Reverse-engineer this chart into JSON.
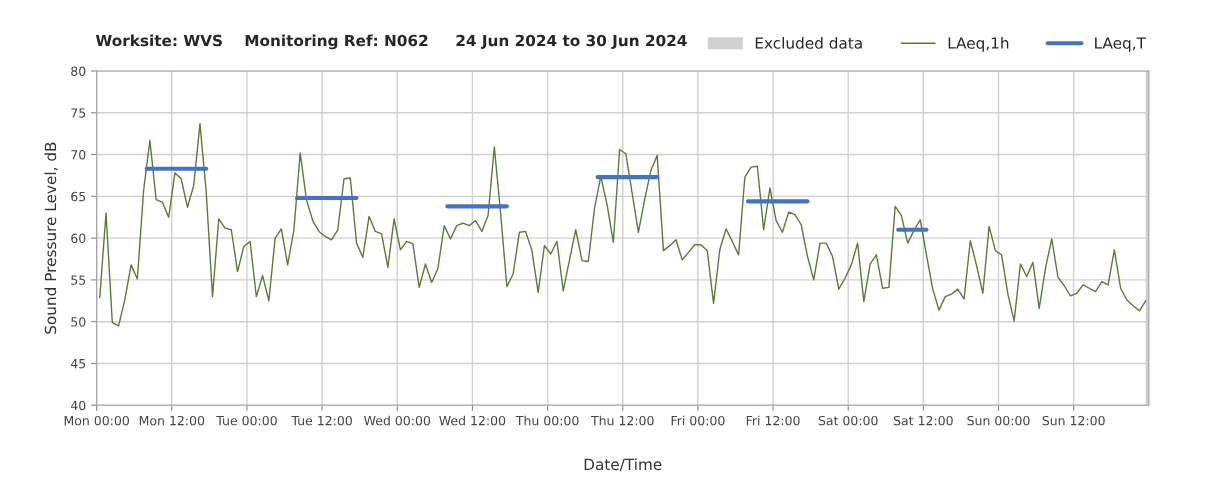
{
  "chart_data": {
    "type": "line",
    "title": "Worksite: WVS    Monitoring Ref: N062     24 Jun 2024 to 30 Jun 2024",
    "xlabel": "Date/Time",
    "ylabel": "Sound Pressure Level, dB",
    "xlim": [
      "2024-06-24T00:00",
      "2024-07-01T00:00"
    ],
    "ylim": [
      40,
      80
    ],
    "xticks": [
      {
        "value": "2024-06-24T00:00",
        "label": "Mon 00:00"
      },
      {
        "value": "2024-06-24T12:00",
        "label": "Mon 12:00"
      },
      {
        "value": "2024-06-25T00:00",
        "label": "Tue 00:00"
      },
      {
        "value": "2024-06-25T12:00",
        "label": "Tue 12:00"
      },
      {
        "value": "2024-06-26T00:00",
        "label": "Wed 00:00"
      },
      {
        "value": "2024-06-26T12:00",
        "label": "Wed 12:00"
      },
      {
        "value": "2024-06-27T00:00",
        "label": "Thu 00:00"
      },
      {
        "value": "2024-06-27T12:00",
        "label": "Thu 12:00"
      },
      {
        "value": "2024-06-28T00:00",
        "label": "Fri 00:00"
      },
      {
        "value": "2024-06-28T12:00",
        "label": "Fri 12:00"
      },
      {
        "value": "2024-06-29T00:00",
        "label": "Sat 00:00"
      },
      {
        "value": "2024-06-29T12:00",
        "label": "Sat 12:00"
      },
      {
        "value": "2024-06-30T00:00",
        "label": "Sun 00:00"
      },
      {
        "value": "2024-06-30T12:00",
        "label": "Sun 12:00"
      }
    ],
    "yticks": [
      40,
      45,
      50,
      55,
      60,
      65,
      70,
      75,
      80
    ],
    "grid": true,
    "legend": "top right",
    "bands": [
      {
        "axis": "x",
        "from": "2024-06-30T23:30",
        "to": "2024-07-01T00:00",
        "label": "Excluded data",
        "color": "#d0d0d0"
      }
    ],
    "series": [
      {
        "name": "LAeq,1h",
        "color": "#5a7a3a",
        "x": [
          "2024-06-24T00:30",
          "2024-06-24T01:30",
          "2024-06-24T02:30",
          "2024-06-24T03:30",
          "2024-06-24T04:30",
          "2024-06-24T05:30",
          "2024-06-24T06:30",
          "2024-06-24T07:30",
          "2024-06-24T08:30",
          "2024-06-24T09:30",
          "2024-06-24T10:30",
          "2024-06-24T11:30",
          "2024-06-24T12:30",
          "2024-06-24T13:30",
          "2024-06-24T14:30",
          "2024-06-24T15:30",
          "2024-06-24T16:30",
          "2024-06-24T17:30",
          "2024-06-24T18:30",
          "2024-06-24T19:30",
          "2024-06-24T20:30",
          "2024-06-24T21:30",
          "2024-06-24T22:30",
          "2024-06-24T23:30",
          "2024-06-25T00:30",
          "2024-06-25T01:30",
          "2024-06-25T02:30",
          "2024-06-25T03:30",
          "2024-06-25T04:30",
          "2024-06-25T05:30",
          "2024-06-25T06:30",
          "2024-06-25T07:30",
          "2024-06-25T08:30",
          "2024-06-25T09:30",
          "2024-06-25T10:30",
          "2024-06-25T11:30",
          "2024-06-25T12:30",
          "2024-06-25T13:30",
          "2024-06-25T14:30",
          "2024-06-25T15:30",
          "2024-06-25T16:30",
          "2024-06-25T17:30",
          "2024-06-25T18:30",
          "2024-06-25T19:30",
          "2024-06-25T20:30",
          "2024-06-25T21:30",
          "2024-06-25T22:30",
          "2024-06-25T23:30",
          "2024-06-26T00:30",
          "2024-06-26T01:30",
          "2024-06-26T02:30",
          "2024-06-26T03:30",
          "2024-06-26T04:30",
          "2024-06-26T05:30",
          "2024-06-26T06:30",
          "2024-06-26T07:30",
          "2024-06-26T08:30",
          "2024-06-26T09:30",
          "2024-06-26T10:30",
          "2024-06-26T11:30",
          "2024-06-26T12:30",
          "2024-06-26T13:30",
          "2024-06-26T14:30",
          "2024-06-26T15:30",
          "2024-06-26T16:30",
          "2024-06-26T17:30",
          "2024-06-26T18:30",
          "2024-06-26T19:30",
          "2024-06-26T20:30",
          "2024-06-26T21:30",
          "2024-06-26T22:30",
          "2024-06-26T23:30",
          "2024-06-27T00:30",
          "2024-06-27T01:30",
          "2024-06-27T02:30",
          "2024-06-27T03:30",
          "2024-06-27T04:30",
          "2024-06-27T05:30",
          "2024-06-27T06:30",
          "2024-06-27T07:30",
          "2024-06-27T08:30",
          "2024-06-27T09:30",
          "2024-06-27T10:30",
          "2024-06-27T11:30",
          "2024-06-27T12:30",
          "2024-06-27T13:30",
          "2024-06-27T14:30",
          "2024-06-27T15:30",
          "2024-06-27T16:30",
          "2024-06-27T17:30",
          "2024-06-27T18:30",
          "2024-06-27T19:30",
          "2024-06-27T20:30",
          "2024-06-27T21:30",
          "2024-06-27T22:30",
          "2024-06-27T23:30",
          "2024-06-28T00:30",
          "2024-06-28T01:30",
          "2024-06-28T02:30",
          "2024-06-28T03:30",
          "2024-06-28T04:30",
          "2024-06-28T05:30",
          "2024-06-28T06:30",
          "2024-06-28T07:30",
          "2024-06-28T08:30",
          "2024-06-28T09:30",
          "2024-06-28T10:30",
          "2024-06-28T11:30",
          "2024-06-28T12:30",
          "2024-06-28T13:30",
          "2024-06-28T14:30",
          "2024-06-28T15:30",
          "2024-06-28T16:30",
          "2024-06-28T17:30",
          "2024-06-28T18:30",
          "2024-06-28T19:30",
          "2024-06-28T20:30",
          "2024-06-28T21:30",
          "2024-06-28T22:30",
          "2024-06-28T23:30",
          "2024-06-29T00:30",
          "2024-06-29T01:30",
          "2024-06-29T02:30",
          "2024-06-29T03:30",
          "2024-06-29T04:30",
          "2024-06-29T05:30",
          "2024-06-29T06:30",
          "2024-06-29T07:30",
          "2024-06-29T08:30",
          "2024-06-29T09:30",
          "2024-06-29T10:30",
          "2024-06-29T11:30",
          "2024-06-29T12:30",
          "2024-06-29T13:30",
          "2024-06-29T14:30",
          "2024-06-29T15:30",
          "2024-06-29T16:30",
          "2024-06-29T17:30",
          "2024-06-29T18:30",
          "2024-06-29T19:30",
          "2024-06-29T20:30",
          "2024-06-29T21:30",
          "2024-06-29T22:30",
          "2024-06-29T23:30",
          "2024-06-30T00:30",
          "2024-06-30T01:30",
          "2024-06-30T02:30",
          "2024-06-30T03:30",
          "2024-06-30T04:30",
          "2024-06-30T05:30",
          "2024-06-30T06:30",
          "2024-06-30T07:30",
          "2024-06-30T08:30",
          "2024-06-30T09:30",
          "2024-06-30T10:30",
          "2024-06-30T11:30",
          "2024-06-30T12:30",
          "2024-06-30T13:30",
          "2024-06-30T14:30",
          "2024-06-30T15:30",
          "2024-06-30T16:30",
          "2024-06-30T17:30",
          "2024-06-30T18:30",
          "2024-06-30T19:30",
          "2024-06-30T20:30",
          "2024-06-30T21:30",
          "2024-06-30T22:30",
          "2024-06-30T23:30"
        ],
        "values": [
          52.9,
          63.0,
          49.9,
          49.5,
          52.6,
          56.8,
          55.1,
          65.7,
          71.7,
          64.6,
          64.3,
          62.5,
          67.8,
          67.1,
          63.7,
          66.3,
          73.7,
          65.5,
          53.0,
          62.3,
          61.2,
          61.0,
          56.0,
          59.0,
          59.6,
          53.0,
          55.5,
          52.5,
          60.0,
          61.1,
          56.8,
          61.0,
          70.2,
          64.6,
          62.1,
          60.8,
          60.2,
          59.8,
          61.0,
          67.1,
          67.2,
          59.4,
          57.7,
          62.6,
          60.8,
          60.5,
          56.5,
          62.3,
          58.6,
          59.6,
          59.3,
          54.1,
          56.9,
          54.7,
          56.4,
          61.5,
          59.9,
          61.5,
          61.8,
          61.5,
          62.1,
          60.8,
          62.7,
          70.9,
          63.0,
          54.2,
          55.7,
          60.7,
          60.8,
          58.5,
          53.5,
          59.1,
          58.1,
          59.6,
          53.7,
          57.4,
          61.0,
          57.3,
          57.2,
          63.6,
          67.4,
          64.0,
          59.5,
          70.6,
          70.1,
          65.4,
          60.7,
          64.6,
          68.1,
          69.9,
          58.5,
          59.1,
          59.8,
          57.4,
          58.3,
          59.2,
          59.2,
          58.5,
          52.2,
          58.6,
          61.1,
          59.6,
          58.0,
          67.3,
          68.5,
          68.6,
          61.0,
          66.0,
          62.1,
          60.7,
          63.1,
          62.8,
          61.6,
          57.8,
          55.0,
          59.4,
          59.4,
          57.8,
          53.9,
          55.2,
          56.8,
          59.4,
          52.4,
          56.9,
          58.0,
          54.0,
          54.1,
          63.8,
          62.7,
          59.4,
          60.9,
          62.2,
          58.0,
          53.9,
          51.4,
          53.0,
          53.3,
          53.9,
          52.7,
          59.7,
          56.7,
          53.4,
          61.4,
          58.5,
          58.0,
          53.3,
          50.1,
          56.9,
          55.4,
          57.1,
          51.6,
          56.4,
          59.9,
          55.3,
          54.3,
          53.1,
          53.4,
          54.4,
          54.0,
          53.6,
          54.8,
          54.4,
          58.6,
          54.0,
          52.6,
          51.9,
          51.3,
          52.5
        ]
      },
      {
        "name": "LAeq,T",
        "color": "#4472c4",
        "x": [
          "2024-06-24T08:00",
          "2024-06-24T17:30",
          "2024-06-25T00:00",
          "2024-06-25T08:00",
          "2024-06-25T17:30",
          "2024-06-26T00:00",
          "2024-06-26T08:00",
          "2024-06-26T17:30",
          "2024-06-27T00:00",
          "2024-06-27T08:00",
          "2024-06-27T17:30",
          "2024-06-28T00:00",
          "2024-06-28T08:00",
          "2024-06-28T17:30",
          "2024-06-29T00:00",
          "2024-06-29T08:00",
          "2024-06-29T12:30"
        ],
        "values": [
          68.3,
          68.3,
          null,
          64.8,
          64.8,
          null,
          63.8,
          63.8,
          null,
          67.3,
          67.3,
          null,
          64.4,
          64.4,
          null,
          61.0,
          61.0
        ]
      }
    ]
  }
}
